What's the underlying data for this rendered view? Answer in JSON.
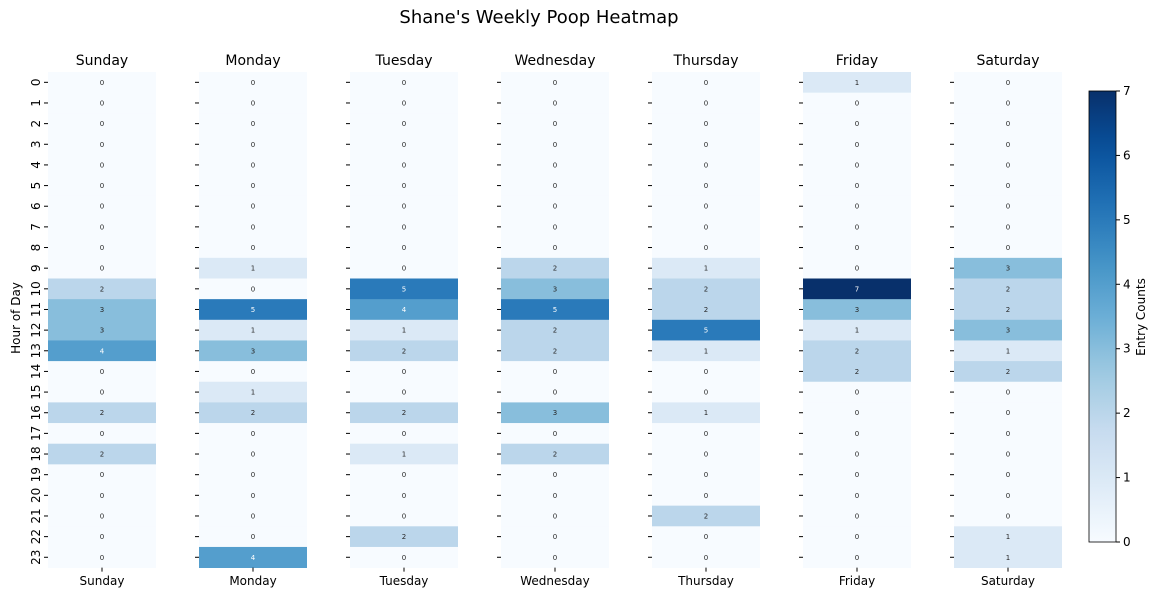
{
  "chart_data": {
    "type": "heatmap",
    "title": "Shane's Weekly Poop Heatmap",
    "ylabel": "Hour of Day",
    "colorbar_label": "Entry Counts",
    "colorbar_range": [
      0,
      7
    ],
    "colorbar_ticks": [
      "0",
      "1",
      "2",
      "3",
      "4",
      "5",
      "6",
      "7"
    ],
    "colormap": "Blues",
    "hours": [
      "0",
      "1",
      "2",
      "3",
      "4",
      "5",
      "6",
      "7",
      "8",
      "9",
      "10",
      "11",
      "12",
      "13",
      "14",
      "15",
      "16",
      "17",
      "18",
      "19",
      "20",
      "21",
      "22",
      "23"
    ],
    "days": [
      {
        "name": "Sunday",
        "values": [
          0,
          0,
          0,
          0,
          0,
          0,
          0,
          0,
          0,
          0,
          2,
          3,
          3,
          4,
          0,
          0,
          2,
          0,
          2,
          0,
          0,
          0,
          0,
          0
        ]
      },
      {
        "name": "Monday",
        "values": [
          0,
          0,
          0,
          0,
          0,
          0,
          0,
          0,
          0,
          1,
          0,
          5,
          1,
          3,
          0,
          1,
          2,
          0,
          0,
          0,
          0,
          0,
          0,
          4
        ]
      },
      {
        "name": "Tuesday",
        "values": [
          0,
          0,
          0,
          0,
          0,
          0,
          0,
          0,
          0,
          0,
          5,
          4,
          1,
          2,
          0,
          0,
          2,
          0,
          1,
          0,
          0,
          0,
          2,
          0
        ]
      },
      {
        "name": "Wednesday",
        "values": [
          0,
          0,
          0,
          0,
          0,
          0,
          0,
          0,
          0,
          2,
          3,
          5,
          2,
          2,
          0,
          0,
          3,
          0,
          2,
          0,
          0,
          0,
          0,
          0
        ]
      },
      {
        "name": "Thursday",
        "values": [
          0,
          0,
          0,
          0,
          0,
          0,
          0,
          0,
          0,
          1,
          2,
          2,
          5,
          1,
          0,
          0,
          1,
          0,
          0,
          0,
          0,
          2,
          0,
          0
        ]
      },
      {
        "name": "Friday",
        "values": [
          1,
          0,
          0,
          0,
          0,
          0,
          0,
          0,
          0,
          0,
          7,
          3,
          1,
          2,
          2,
          0,
          0,
          0,
          0,
          0,
          0,
          0,
          0,
          0
        ]
      },
      {
        "name": "Saturday",
        "values": [
          0,
          0,
          0,
          0,
          0,
          0,
          0,
          0,
          0,
          3,
          2,
          2,
          3,
          1,
          2,
          0,
          0,
          0,
          0,
          0,
          0,
          0,
          1,
          1
        ]
      }
    ]
  }
}
